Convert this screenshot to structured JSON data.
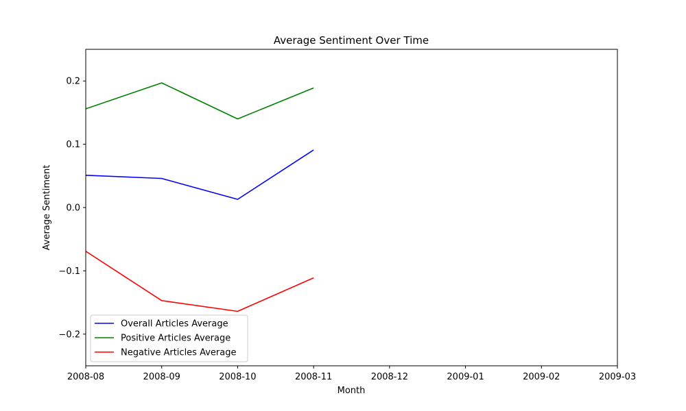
{
  "chart_data": {
    "type": "line",
    "title": "Average Sentiment Over Time",
    "xlabel": "Month",
    "ylabel": "Average Sentiment",
    "x": [
      "2008-08",
      "2008-09",
      "2008-10",
      "2008-11"
    ],
    "xlim": [
      "2008-08",
      "2009-03"
    ],
    "ylim": [
      -0.25,
      0.25
    ],
    "x_ticks": [
      "2008-08",
      "2008-09",
      "2008-10",
      "2008-11",
      "2008-12",
      "2009-01",
      "2009-02",
      "2009-03"
    ],
    "y_ticks": [
      -0.2,
      -0.1,
      0.0,
      0.1,
      0.2
    ],
    "y_tick_labels": [
      "−0.2",
      "−0.1",
      "0.0",
      "0.1",
      "0.2"
    ],
    "grid": false,
    "legend_position": "lower-left",
    "series": [
      {
        "name": "Overall Articles Average",
        "color": "#0000ff",
        "values": [
          0.051,
          0.046,
          0.013,
          0.091
        ]
      },
      {
        "name": "Positive Articles Average",
        "color": "#008000",
        "values": [
          0.156,
          0.197,
          0.14,
          0.189
        ]
      },
      {
        "name": "Negative Articles Average",
        "color": "#ff0000",
        "values": [
          -0.069,
          -0.147,
          -0.164,
          -0.111
        ]
      }
    ]
  }
}
